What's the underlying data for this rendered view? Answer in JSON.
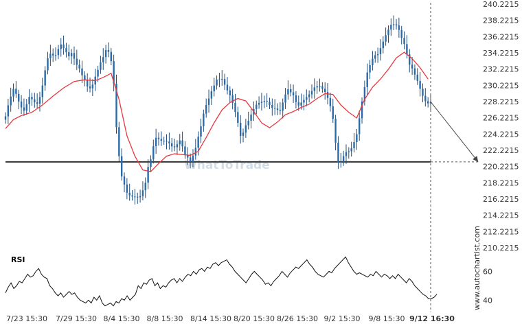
{
  "chart_data": [
    {
      "type": "candlestick",
      "title": "",
      "watermark": "WhatToTrade",
      "ylim": [
        208.2215,
        241.2215
      ],
      "yticks": [
        "240.2215",
        "238.2215",
        "236.2215",
        "234.2215",
        "232.2215",
        "230.2215",
        "228.2215",
        "226.2215",
        "224.2215",
        "222.2215",
        "220.2215",
        "218.2215",
        "216.2215",
        "214.2215",
        "212.2215",
        "210.2215"
      ],
      "xticks": [
        "7/23 15:30",
        "7/29 15:30",
        "8/4 15:30",
        "8/8 15:30",
        "8/14 15:30",
        "8/20 15:30",
        "8/26 15:30",
        "9/2 15:30",
        "9/8 15:30",
        "9/12 16:30"
      ],
      "support_level": 220.8,
      "moving_average": [
        [
          0,
          224.9
        ],
        [
          3,
          226.0
        ],
        [
          6,
          226.5
        ],
        [
          10,
          226.9
        ],
        [
          14,
          227.8
        ],
        [
          18,
          228.9
        ],
        [
          22,
          229.9
        ],
        [
          26,
          230.7
        ],
        [
          30,
          230.9
        ],
        [
          34,
          230.8
        ],
        [
          37,
          231.2
        ],
        [
          40,
          231.7
        ],
        [
          43,
          228.5
        ],
        [
          46,
          224.0
        ],
        [
          49,
          221.5
        ],
        [
          52,
          219.8
        ],
        [
          55,
          219.6
        ],
        [
          58,
          220.6
        ],
        [
          61,
          221.5
        ],
        [
          64,
          221.8
        ],
        [
          67,
          221.7
        ],
        [
          70,
          221.6
        ],
        [
          73,
          222.1
        ],
        [
          76,
          223.8
        ],
        [
          79,
          225.6
        ],
        [
          82,
          227.2
        ],
        [
          85,
          228.1
        ],
        [
          88,
          228.6
        ],
        [
          91,
          228.3
        ],
        [
          94,
          227.0
        ],
        [
          97,
          225.6
        ],
        [
          100,
          225.0
        ],
        [
          103,
          225.7
        ],
        [
          106,
          226.6
        ],
        [
          109,
          227.0
        ],
        [
          112,
          227.5
        ],
        [
          115,
          227.9
        ],
        [
          118,
          228.6
        ],
        [
          121,
          229.2
        ],
        [
          124,
          229.1
        ],
        [
          127,
          227.8
        ],
        [
          130,
          226.9
        ],
        [
          133,
          226.2
        ],
        [
          136,
          228.5
        ],
        [
          139,
          230.0
        ],
        [
          142,
          231.0
        ],
        [
          145,
          232.2
        ],
        [
          148,
          233.6
        ],
        [
          151,
          234.3
        ],
        [
          154,
          233.5
        ],
        [
          157,
          232.4
        ],
        [
          160,
          231.0
        ]
      ],
      "projection": {
        "from": [
          161,
          228.2
        ],
        "to": [
          179,
          220.8
        ]
      },
      "current_marker": "9/12 16:30"
    },
    {
      "type": "line",
      "title": "RSI",
      "ylim": [
        33,
        74
      ],
      "yticks": [
        "60",
        "40"
      ],
      "values": [
        45,
        49,
        52,
        48,
        50,
        53,
        52,
        55,
        58,
        56,
        57,
        60,
        62,
        58,
        56,
        55,
        50,
        48,
        45,
        43,
        45,
        42,
        44,
        46,
        44,
        45,
        42,
        40,
        39,
        38,
        40,
        38,
        42,
        40,
        43,
        38,
        36,
        37,
        38,
        36,
        39,
        38,
        41,
        40,
        43,
        40,
        42,
        44,
        50,
        48,
        52,
        51,
        54,
        55,
        50,
        52,
        48,
        50,
        49,
        52,
        54,
        55,
        52,
        55,
        53,
        56,
        58,
        57,
        60,
        58,
        61,
        62,
        60,
        63,
        62,
        65,
        66,
        64,
        66,
        67,
        68,
        65,
        63,
        60,
        58,
        56,
        54,
        52,
        55,
        58,
        60,
        58,
        56,
        54,
        51,
        52,
        50,
        53,
        55,
        57,
        60,
        58,
        56,
        59,
        61,
        63,
        62,
        64,
        66,
        68,
        65,
        63,
        60,
        58,
        57,
        56,
        58,
        60,
        59,
        62,
        64,
        66,
        68,
        70,
        66,
        63,
        60,
        58,
        59,
        58,
        57,
        56,
        58,
        57,
        60,
        58,
        56,
        58,
        57,
        55,
        57,
        55,
        58,
        56,
        54,
        52,
        55,
        53,
        50,
        48,
        46,
        44,
        43,
        41,
        41,
        42,
        44
      ]
    }
  ],
  "brand": "www.autochartist.com"
}
